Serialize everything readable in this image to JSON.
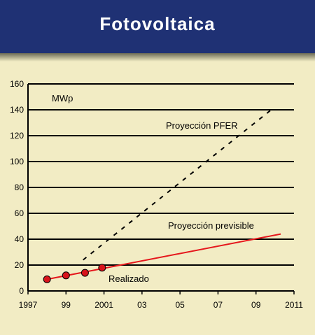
{
  "header": {
    "title": "Fotovoltaica"
  },
  "colors": {
    "header_bg": "#1f3174",
    "background": "#f2ecc4",
    "grid": "#000000",
    "pfer_line": "#000000",
    "previsible_line": "#e5171c",
    "marker_fill": "#d8141b"
  },
  "chart_data": {
    "type": "line",
    "unit_label": "MWp",
    "x_ticks": [
      {
        "value": 1997,
        "label": "1997"
      },
      {
        "value": 1999,
        "label": "99"
      },
      {
        "value": 2001,
        "label": "2001"
      },
      {
        "value": 2003,
        "label": "03"
      },
      {
        "value": 2005,
        "label": "05"
      },
      {
        "value": 2007,
        "label": "07"
      },
      {
        "value": 2009,
        "label": "09"
      },
      {
        "value": 2011,
        "label": "2011"
      }
    ],
    "xlim": [
      1997,
      2011
    ],
    "y_ticks": [
      0,
      20,
      40,
      60,
      80,
      100,
      120,
      140,
      160
    ],
    "ylim": [
      0,
      160
    ],
    "grid": "horizontal",
    "series": [
      {
        "name": "Proyección PFER",
        "style": "dashed",
        "color": "#000000",
        "points": [
          [
            1999.9,
            24
          ],
          [
            2009.8,
            140
          ]
        ]
      },
      {
        "name": "Proyección previsible",
        "style": "solid",
        "color": "#e5171c",
        "points": [
          [
            1998,
            9
          ],
          [
            2010.3,
            44
          ]
        ]
      },
      {
        "name": "Realizado",
        "style": "markers",
        "color": "#d8141b",
        "points": [
          [
            1998,
            9
          ],
          [
            1999,
            12
          ],
          [
            2000,
            14
          ],
          [
            2000.9,
            18
          ]
        ]
      }
    ]
  }
}
